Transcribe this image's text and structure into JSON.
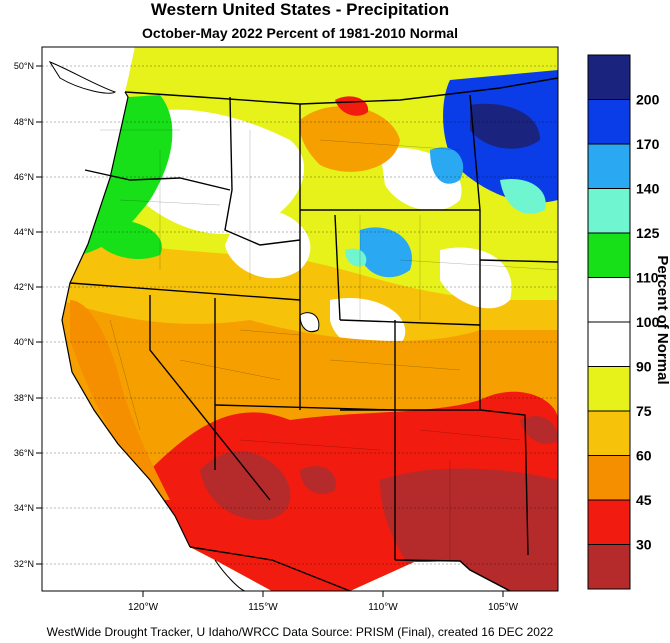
{
  "title": "Western United States - Precipitation",
  "subtitle": "October-May 2022  Percent of 1981-2010 Normal",
  "footer": "WestWide Drought Tracker, U Idaho/WRCC Data Source: PRISM (Final), created 16 DEC 2022",
  "colorbar": {
    "title": "Percent of Normal",
    "bins": [
      {
        "label": "",
        "color": "#1a237e"
      },
      {
        "label": "200",
        "color": "#0a3de8"
      },
      {
        "label": "170",
        "color": "#2aa9f2"
      },
      {
        "label": "140",
        "color": "#6ff5cf"
      },
      {
        "label": "125",
        "color": "#18e018"
      },
      {
        "label": "110",
        "color": "#ffffff"
      },
      {
        "label": "100",
        "color": "#ffffff"
      },
      {
        "label": "90",
        "color": "#e6f21a"
      },
      {
        "label": "75",
        "color": "#f7c20a"
      },
      {
        "label": "60",
        "color": "#f58f00"
      },
      {
        "label": "45",
        "color": "#f21b0f"
      },
      {
        "label": "30",
        "color": "#b52a2a"
      }
    ]
  },
  "latitude_labels": [
    "50°N",
    "48°N",
    "46°N",
    "44°N",
    "42°N",
    "40°N",
    "38°N",
    "36°N",
    "34°N",
    "32°N"
  ],
  "longitude_labels": [
    "120°W",
    "115°W",
    "110°W",
    "105°W"
  ],
  "colors": {
    "ocean": "#ffffff",
    "canada": "#ffffff",
    "mexico": "#ffffff",
    "border": "#000000"
  }
}
